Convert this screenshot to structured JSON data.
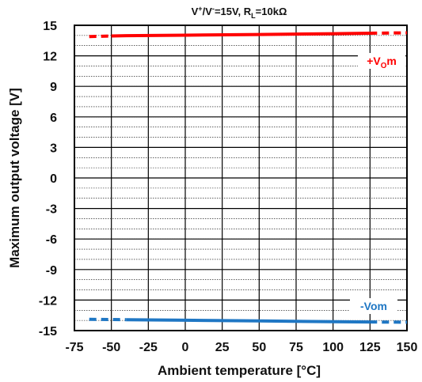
{
  "chart_data": {
    "type": "line",
    "title": {
      "parts": [
        {
          "text": "V",
          "kind": "normal"
        },
        {
          "text": "+",
          "kind": "sup"
        },
        {
          "text": "/V",
          "kind": "normal"
        },
        {
          "text": "-",
          "kind": "sup"
        },
        {
          "text": "=15V, R",
          "kind": "normal"
        },
        {
          "text": "L",
          "kind": "sub"
        },
        {
          "text": "=10kΩ",
          "kind": "normal"
        }
      ]
    },
    "xlabel": "Ambient temperature [°C]",
    "ylabel": "Maximum output voltage [V]",
    "xlim": [
      -75,
      150
    ],
    "ylim": [
      -15,
      15
    ],
    "x_ticks": [
      "-75",
      "-50",
      "-25",
      "0",
      "25",
      "50",
      "75",
      "100",
      "125",
      "150"
    ],
    "y_ticks": [
      "15",
      "12",
      "9",
      "6",
      "3",
      "0",
      "-3",
      "-6",
      "-9",
      "-12",
      "-15"
    ],
    "y_minor_step": 1,
    "grid": true,
    "series": [
      {
        "label_parts": [
          {
            "text": "+V",
            "kind": "normal"
          },
          {
            "text": "O",
            "kind": "sub"
          },
          {
            "text": "m",
            "kind": "normal"
          }
        ],
        "color": "#ff0000",
        "dashed_range": [
          [
            -65,
            -50
          ],
          [
            125,
            150
          ]
        ],
        "points": [
          [
            -65,
            13.9
          ],
          [
            -50,
            13.95
          ],
          [
            -40,
            13.98
          ],
          [
            0,
            14.03
          ],
          [
            50,
            14.1
          ],
          [
            100,
            14.18
          ],
          [
            125,
            14.22
          ],
          [
            150,
            14.26
          ]
        ]
      },
      {
        "label_parts": [
          {
            "text": "-Vom",
            "kind": "normal"
          }
        ],
        "color": "#1f77c4",
        "dashed_range": [
          [
            -65,
            -40
          ],
          [
            125,
            150
          ]
        ],
        "points": [
          [
            -65,
            -13.9
          ],
          [
            -40,
            -13.93
          ],
          [
            0,
            -13.98
          ],
          [
            50,
            -14.05
          ],
          [
            100,
            -14.12
          ],
          [
            125,
            -14.15
          ],
          [
            150,
            -14.18
          ]
        ]
      }
    ]
  }
}
